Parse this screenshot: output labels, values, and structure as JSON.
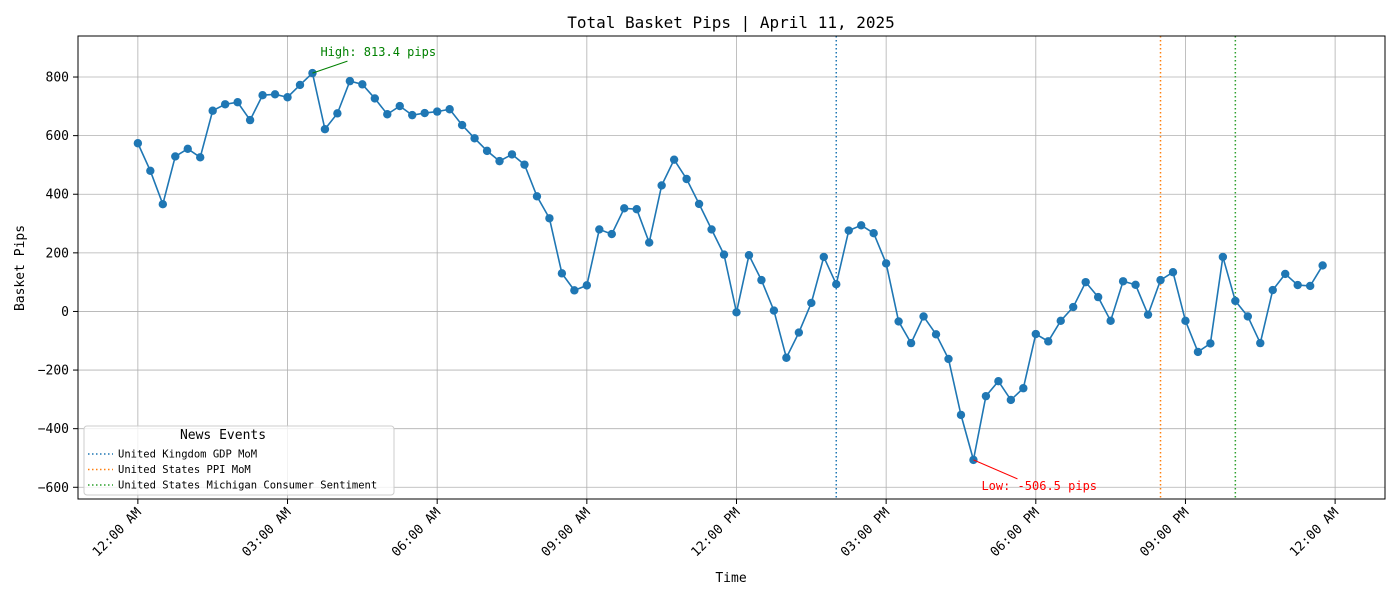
{
  "chart_data": {
    "type": "line",
    "title": "Total Basket Pips | April 11, 2025",
    "xlabel": "Time",
    "ylabel": "Basket Pips",
    "xlim_hours": [
      -1.2,
      25.0
    ],
    "ylim": [
      -640,
      940
    ],
    "grid": true,
    "x_ticks": [
      {
        "hour": 0,
        "label": "12:00 AM"
      },
      {
        "hour": 3,
        "label": "03:00 AM"
      },
      {
        "hour": 6,
        "label": "06:00 AM"
      },
      {
        "hour": 9,
        "label": "09:00 AM"
      },
      {
        "hour": 12,
        "label": "12:00 PM"
      },
      {
        "hour": 15,
        "label": "03:00 PM"
      },
      {
        "hour": 18,
        "label": "06:00 PM"
      },
      {
        "hour": 21,
        "label": "09:00 PM"
      },
      {
        "hour": 24,
        "label": "12:00 AM"
      }
    ],
    "y_ticks": [
      {
        "value": 800,
        "label": "800"
      },
      {
        "value": 600,
        "label": "600"
      },
      {
        "value": 400,
        "label": "400"
      },
      {
        "value": 200,
        "label": "200"
      },
      {
        "value": 0,
        "label": "0"
      },
      {
        "value": -200,
        "label": "−200"
      },
      {
        "value": -400,
        "label": "−400"
      },
      {
        "value": -600,
        "label": "−600"
      }
    ],
    "series": [
      {
        "color": "#1f77b4",
        "interval_hours": 0.25,
        "start_hour": 0,
        "values": [
          574,
          480,
          366,
          529,
          555,
          526,
          685,
          707,
          714,
          653,
          738,
          741,
          731,
          773,
          813.4,
          622,
          676,
          786,
          775,
          727,
          673,
          701,
          670,
          677,
          682,
          690,
          636,
          591,
          548,
          513,
          536,
          501,
          393,
          318,
          130,
          72,
          89,
          280,
          264,
          352,
          349,
          235,
          430,
          518,
          452,
          367,
          280,
          194,
          -3,
          192,
          107,
          3,
          -158,
          -72,
          29,
          186,
          93,
          276,
          294,
          267,
          164,
          -34,
          -108,
          -17,
          -78,
          -162,
          -353,
          -506.5,
          -289,
          -238,
          -302,
          -262,
          -77,
          -102,
          -32,
          15,
          100,
          49,
          -32,
          103,
          91,
          -11,
          107,
          134,
          -32,
          -138,
          -109,
          186,
          36,
          -17,
          -108,
          73,
          128,
          90,
          87,
          157
        ]
      }
    ],
    "annotations": [
      {
        "text": "High: 813.4 pips",
        "hour": 3.5,
        "value": 813.4,
        "color": "#008000"
      },
      {
        "text": "Low: -506.5 pips",
        "hour": 16.75,
        "value": -506.5,
        "color": "#ff0000"
      }
    ],
    "news_events": {
      "title": "News Events",
      "legend_placement": "lower left",
      "items": [
        {
          "name": "United Kingdom GDP MoM",
          "hour": 14.0,
          "color": "#1f77b4"
        },
        {
          "name": "United States PPI MoM",
          "hour": 20.5,
          "color": "#ff7f0e"
        },
        {
          "name": "United States Michigan Consumer Sentiment",
          "hour": 22.0,
          "color": "#2ca02c"
        }
      ]
    }
  }
}
